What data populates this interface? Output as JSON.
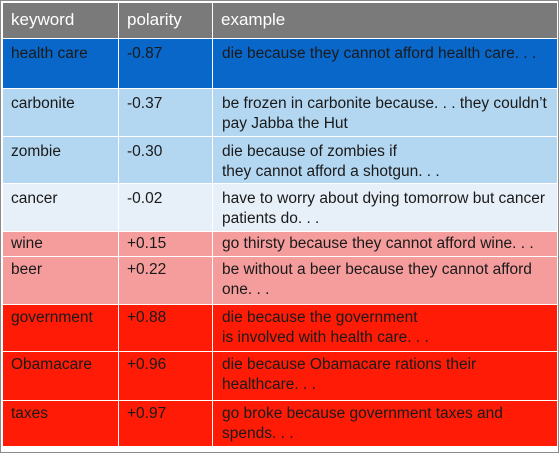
{
  "headers": {
    "keyword": "keyword",
    "polarity": "polarity",
    "example": "example"
  },
  "colors": {
    "header": "#7a7a7a",
    "strong_negative": "#0867c9",
    "negative": "#b3d6f1",
    "neutral": "#e7eff8",
    "positive": "#f59c9c",
    "strong_positive": "#ff1b05"
  },
  "rows": [
    {
      "keyword": "health care",
      "polarity": "-0.87",
      "example": "die because they cannot afford health care. . .",
      "tone": "strong_negative"
    },
    {
      "keyword": "carbonite",
      "polarity": "-0.37",
      "example": "be frozen in carbonite because. . . they couldn’t pay Jabba the Hut",
      "tone": "negative"
    },
    {
      "keyword": "zombie",
      "polarity": "-0.30",
      "example": "die because of zombies if\nthey cannot afford a shotgun. . .",
      "tone": "negative"
    },
    {
      "keyword": "cancer",
      "polarity": "-0.02",
      "example": "have to worry about dying tomorrow but cancer patients do. . .",
      "tone": "neutral"
    },
    {
      "keyword": "wine",
      "polarity": "+0.15",
      "example": "go thirsty because they cannot afford wine. . .",
      "tone": "positive"
    },
    {
      "keyword": "beer",
      "polarity": "+0.22",
      "example": "be without a beer because they cannot afford one. . .",
      "tone": "positive"
    },
    {
      "keyword": "government",
      "polarity": "+0.88",
      "example": "die because the government\nis involved with health care. . .",
      "tone": "strong_positive"
    },
    {
      "keyword": "Obamacare",
      "polarity": "+0.96",
      "example": "die because Obamacare rations their healthcare. . .",
      "tone": "strong_positive"
    },
    {
      "keyword": "taxes",
      "polarity": "+0.97",
      "example": "go broke because government taxes and spends. . .",
      "tone": "strong_positive"
    }
  ]
}
